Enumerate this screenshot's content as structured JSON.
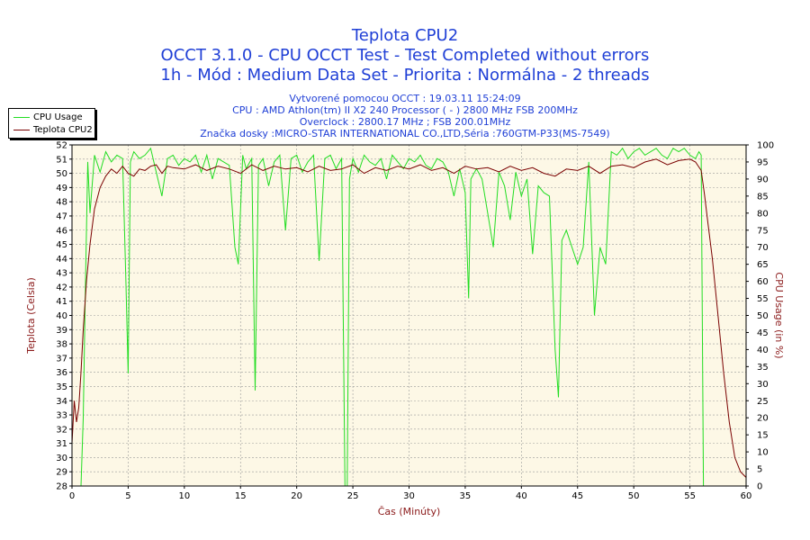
{
  "header": {
    "title": "Teplota CPU2",
    "subtitle_1": "OCCT 3.1.0 - CPU OCCT Test - Test Completed without errors",
    "subtitle_2": "1h - Mód : Medium Data Set - Priorita : Normálna - 2 threads",
    "info_1": "Vytvorené pomocou OCCT : 19.03.11 15:24:09",
    "info_2": "CPU : AMD Athlon(tm) II X2 240 Processor ( - ) 2800 MHz FSB 200MHz",
    "info_3": "Overclock : 2800.17 MHz ; FSB 200.01MHz",
    "info_4": "Značka dosky :MICRO-STAR INTERNATIONAL CO.,LTD,Séria :760GTM-P33(MS-7549)"
  },
  "colors": {
    "title_text": "#1f3fd6",
    "axis_label_text": "#8b1a1a",
    "plot_bg": "#fdf8e6",
    "grid": "#9a9a9a",
    "cpu_usage": "#22dd22",
    "teplota": "#7a0000"
  },
  "chart_data": {
    "type": "line",
    "xlabel": "Čas (Minúty)",
    "ylabel_left": "Teplota (Celsia)",
    "ylabel_right": "CPU Usage (in %)",
    "xlim": [
      0,
      60
    ],
    "ylim_left": [
      28,
      52
    ],
    "ylim_right": [
      0,
      100
    ],
    "x_ticks": [
      0,
      5,
      10,
      15,
      20,
      25,
      30,
      35,
      40,
      45,
      50,
      55,
      60
    ],
    "y_left_ticks": [
      28,
      29,
      30,
      31,
      32,
      33,
      34,
      35,
      36,
      37,
      38,
      39,
      40,
      41,
      42,
      43,
      44,
      45,
      46,
      47,
      48,
      49,
      50,
      51,
      52
    ],
    "y_right_ticks": [
      0,
      5,
      10,
      15,
      20,
      25,
      30,
      35,
      40,
      45,
      50,
      55,
      60,
      65,
      70,
      75,
      80,
      85,
      90,
      95,
      100
    ],
    "grid": true,
    "legend": "top-left",
    "series": [
      {
        "name": "CPU Usage",
        "axis": "right",
        "x": [
          0.8,
          1.0,
          1.2,
          1.4,
          1.6,
          2.0,
          2.5,
          3.0,
          3.5,
          4.0,
          4.5,
          4.8,
          5.0,
          5.2,
          5.5,
          6.0,
          6.5,
          7.0,
          7.5,
          8.0,
          8.5,
          9.0,
          9.5,
          10.0,
          10.5,
          11.0,
          11.5,
          12.0,
          12.5,
          13.0,
          13.5,
          14.0,
          14.5,
          14.8,
          15.2,
          15.5,
          16.0,
          16.3,
          16.6,
          17.0,
          17.5,
          18.0,
          18.5,
          19.0,
          19.5,
          20.0,
          20.5,
          21.0,
          21.5,
          22.0,
          22.5,
          23.0,
          23.5,
          24.0,
          24.3,
          24.5,
          24.7,
          25.0,
          25.5,
          26.0,
          26.5,
          27.0,
          27.5,
          28.0,
          28.5,
          29.0,
          29.5,
          30.0,
          30.5,
          31.0,
          31.5,
          32.0,
          32.5,
          33.0,
          33.5,
          34.0,
          34.5,
          35.0,
          35.3,
          35.5,
          36.0,
          36.5,
          37.0,
          37.5,
          38.0,
          38.5,
          39.0,
          39.5,
          40.0,
          40.5,
          41.0,
          41.5,
          42.0,
          42.5,
          43.0,
          43.3,
          43.6,
          44.0,
          44.5,
          45.0,
          45.5,
          46.0,
          46.5,
          47.0,
          47.5,
          48.0,
          48.5,
          49.0,
          49.5,
          50.0,
          50.5,
          51.0,
          51.5,
          52.0,
          52.5,
          53.0,
          53.5,
          54.0,
          54.5,
          55.0,
          55.5,
          55.8,
          56.0,
          56.2
        ],
        "values": [
          0,
          20,
          60,
          95,
          80,
          97,
          92,
          98,
          95,
          97,
          96,
          60,
          33,
          95,
          98,
          96,
          97,
          99,
          92,
          85,
          96,
          97,
          94,
          96,
          95,
          97,
          92,
          97,
          90,
          96,
          95,
          94,
          70,
          65,
          97,
          93,
          96,
          28,
          94,
          96,
          88,
          95,
          97,
          75,
          96,
          97,
          92,
          95,
          97,
          66,
          96,
          97,
          93,
          96,
          0,
          0,
          90,
          96,
          92,
          97,
          95,
          94,
          96,
          90,
          97,
          95,
          93,
          96,
          95,
          97,
          94,
          93,
          96,
          95,
          92,
          85,
          93,
          86,
          55,
          90,
          93,
          90,
          80,
          70,
          92,
          88,
          78,
          92,
          85,
          90,
          68,
          88,
          86,
          85,
          40,
          26,
          72,
          75,
          70,
          65,
          70,
          95,
          50,
          70,
          65,
          98,
          97,
          99,
          96,
          98,
          99,
          97,
          98,
          99,
          97,
          96,
          99,
          98,
          99,
          97,
          96,
          98,
          97,
          0
        ]
      },
      {
        "name": "Teplota CPU2",
        "axis": "left",
        "x": [
          0.0,
          0.2,
          0.4,
          0.6,
          0.8,
          1.0,
          1.3,
          1.6,
          2.0,
          2.5,
          3.0,
          3.5,
          4.0,
          4.5,
          5.0,
          5.5,
          6.0,
          6.5,
          7.0,
          7.5,
          8.0,
          8.5,
          9.0,
          10.0,
          11.0,
          12.0,
          13.0,
          14.0,
          15.0,
          16.0,
          17.0,
          18.0,
          19.0,
          20.0,
          21.0,
          22.0,
          23.0,
          24.0,
          25.0,
          26.0,
          27.0,
          28.0,
          29.0,
          30.0,
          31.0,
          32.0,
          33.0,
          34.0,
          35.0,
          36.0,
          37.0,
          38.0,
          39.0,
          40.0,
          41.0,
          42.0,
          43.0,
          44.0,
          45.0,
          46.0,
          47.0,
          48.0,
          49.0,
          50.0,
          51.0,
          52.0,
          53.0,
          54.0,
          55.0,
          55.5,
          56.0,
          56.3,
          56.6,
          57.0,
          57.5,
          58.0,
          58.5,
          59.0,
          59.5,
          60.0
        ],
        "values": [
          31.0,
          34.0,
          32.5,
          33.5,
          36.0,
          39.0,
          42.5,
          45.0,
          47.5,
          49.0,
          49.8,
          50.3,
          50.0,
          50.5,
          50.0,
          49.8,
          50.3,
          50.2,
          50.5,
          50.6,
          50.0,
          50.5,
          50.4,
          50.3,
          50.6,
          50.2,
          50.5,
          50.3,
          50.0,
          50.6,
          50.2,
          50.5,
          50.3,
          50.4,
          50.1,
          50.5,
          50.2,
          50.3,
          50.6,
          50.0,
          50.4,
          50.2,
          50.5,
          50.3,
          50.6,
          50.2,
          50.4,
          50.0,
          50.5,
          50.3,
          50.4,
          50.1,
          50.5,
          50.2,
          50.4,
          50.0,
          49.8,
          50.3,
          50.2,
          50.5,
          50.0,
          50.5,
          50.6,
          50.4,
          50.8,
          51.0,
          50.6,
          50.9,
          51.0,
          50.8,
          50.2,
          48.5,
          46.5,
          44.0,
          40.0,
          36.0,
          32.5,
          30.0,
          29.0,
          28.6
        ]
      }
    ]
  }
}
